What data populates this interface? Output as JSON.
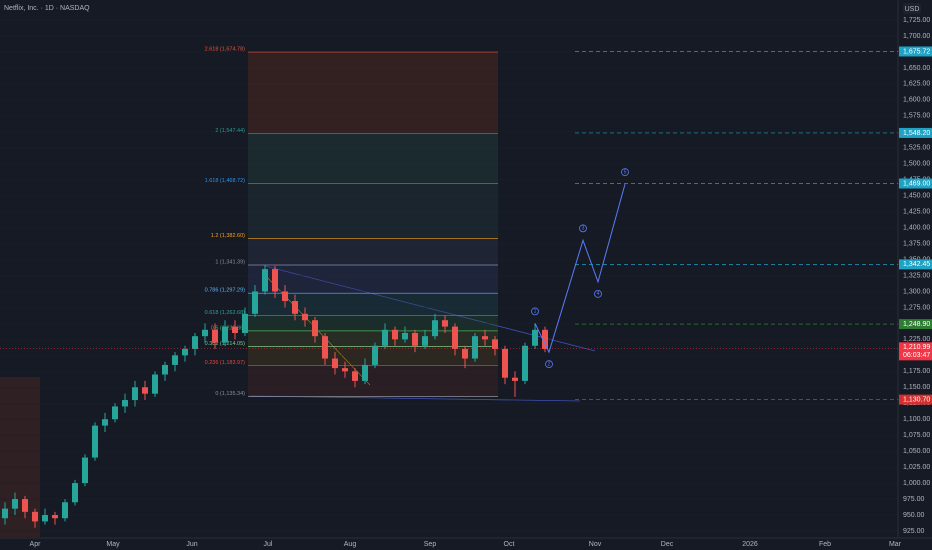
{
  "chart_data": {
    "type": "candlestick",
    "title": "Netflix, Inc. · 1D · NASDAQ",
    "currency": "USD",
    "up_color": "#26a69a",
    "down_color": "#ef5350",
    "ylim": [
      925,
      1725
    ],
    "yticks": [
      {
        "value": 925,
        "label": "925.00"
      },
      {
        "value": 950,
        "label": "950.00"
      },
      {
        "value": 975,
        "label": "975.00"
      },
      {
        "value": 1000,
        "label": "1,000.00"
      },
      {
        "value": 1025,
        "label": "1,025.00"
      },
      {
        "value": 1050,
        "label": "1,050.00"
      },
      {
        "value": 1075,
        "label": "1,075.00"
      },
      {
        "value": 1100,
        "label": "1,100.00"
      },
      {
        "value": 1125,
        "label": "1,125.00"
      },
      {
        "value": 1150,
        "label": "1,150.00"
      },
      {
        "value": 1175,
        "label": "1,175.00"
      },
      {
        "value": 1200,
        "label": "1,200.00"
      },
      {
        "value": 1225,
        "label": "1,225.00"
      },
      {
        "value": 1250,
        "label": "1,250.00"
      },
      {
        "value": 1275,
        "label": "1,275.00"
      },
      {
        "value": 1300,
        "label": "1,300.00"
      },
      {
        "value": 1325,
        "label": "1,325.00"
      },
      {
        "value": 1350,
        "label": "1,350.00"
      },
      {
        "value": 1375,
        "label": "1,375.00"
      },
      {
        "value": 1400,
        "label": "1,400.00"
      },
      {
        "value": 1425,
        "label": "1,425.00"
      },
      {
        "value": 1450,
        "label": "1,450.00"
      },
      {
        "value": 1475,
        "label": "1,475.00"
      },
      {
        "value": 1500,
        "label": "1,500.00"
      },
      {
        "value": 1525,
        "label": "1,525.00"
      },
      {
        "value": 1550,
        "label": "1,550.00"
      },
      {
        "value": 1575,
        "label": "1,575.00"
      },
      {
        "value": 1600,
        "label": "1,600.00"
      },
      {
        "value": 1625,
        "label": "1,625.00"
      },
      {
        "value": 1650,
        "label": "1,650.00"
      },
      {
        "value": 1675,
        "label": "1,675.00"
      },
      {
        "value": 1700,
        "label": "1,700.00"
      },
      {
        "value": 1725,
        "label": "1,725.00"
      }
    ],
    "months": [
      "Apr",
      "May",
      "Jun",
      "Jul",
      "Aug",
      "Sep",
      "Oct",
      "Nov",
      "Dec",
      "2026",
      "Feb",
      "Mar"
    ],
    "candles": [
      [
        945,
        970,
        935,
        960
      ],
      [
        960,
        985,
        950,
        975
      ],
      [
        975,
        980,
        945,
        955
      ],
      [
        955,
        960,
        930,
        940
      ],
      [
        940,
        960,
        935,
        950
      ],
      [
        950,
        955,
        935,
        945
      ],
      [
        945,
        975,
        940,
        970
      ],
      [
        970,
        1005,
        965,
        1000
      ],
      [
        1000,
        1045,
        995,
        1040
      ],
      [
        1040,
        1095,
        1035,
        1090
      ],
      [
        1090,
        1110,
        1080,
        1100
      ],
      [
        1100,
        1125,
        1095,
        1120
      ],
      [
        1120,
        1140,
        1110,
        1130
      ],
      [
        1130,
        1160,
        1120,
        1150
      ],
      [
        1150,
        1160,
        1130,
        1140
      ],
      [
        1140,
        1175,
        1135,
        1170
      ],
      [
        1170,
        1190,
        1160,
        1185
      ],
      [
        1185,
        1205,
        1175,
        1200
      ],
      [
        1200,
        1215,
        1190,
        1210
      ],
      [
        1210,
        1235,
        1200,
        1230
      ],
      [
        1230,
        1250,
        1220,
        1240
      ],
      [
        1240,
        1250,
        1210,
        1220
      ],
      [
        1220,
        1255,
        1215,
        1245
      ],
      [
        1245,
        1255,
        1225,
        1235
      ],
      [
        1235,
        1275,
        1230,
        1265
      ],
      [
        1265,
        1310,
        1260,
        1300
      ],
      [
        1300,
        1342,
        1295,
        1335
      ],
      [
        1335,
        1340,
        1290,
        1300
      ],
      [
        1300,
        1310,
        1275,
        1285
      ],
      [
        1285,
        1295,
        1255,
        1265
      ],
      [
        1265,
        1275,
        1245,
        1255
      ],
      [
        1255,
        1260,
        1220,
        1230
      ],
      [
        1230,
        1235,
        1185,
        1195
      ],
      [
        1195,
        1205,
        1170,
        1180
      ],
      [
        1180,
        1190,
        1165,
        1175
      ],
      [
        1175,
        1180,
        1150,
        1160
      ],
      [
        1160,
        1195,
        1155,
        1185
      ],
      [
        1185,
        1220,
        1180,
        1215
      ],
      [
        1215,
        1250,
        1210,
        1240
      ],
      [
        1240,
        1245,
        1215,
        1225
      ],
      [
        1225,
        1245,
        1220,
        1235
      ],
      [
        1235,
        1240,
        1205,
        1215
      ],
      [
        1215,
        1240,
        1210,
        1230
      ],
      [
        1230,
        1265,
        1225,
        1255
      ],
      [
        1255,
        1262,
        1235,
        1245
      ],
      [
        1245,
        1250,
        1200,
        1210
      ],
      [
        1210,
        1215,
        1180,
        1195
      ],
      [
        1195,
        1235,
        1190,
        1230
      ],
      [
        1230,
        1240,
        1215,
        1225
      ],
      [
        1225,
        1230,
        1200,
        1210
      ],
      [
        1210,
        1215,
        1155,
        1165
      ],
      [
        1165,
        1175,
        1135,
        1160
      ],
      [
        1160,
        1220,
        1155,
        1215
      ],
      [
        1215,
        1250,
        1210,
        1240
      ],
      [
        1240,
        1245,
        1205,
        1210
      ]
    ],
    "fib_levels": [
      {
        "value": 1674.78,
        "label": "2.618 (1,674.78)",
        "color": "#e0573a",
        "fill": "rgba(120,50,30,0.30)"
      },
      {
        "value": 1547.44,
        "label": "2 (1,547.44)",
        "color": "#2a9d8f",
        "fill": "rgba(40,90,80,0.25)"
      },
      {
        "value": 1468.72,
        "label": "1.618 (1,468.72)",
        "color": "#2196f3",
        "fill": "rgba(40,70,70,0.25)"
      },
      {
        "value": 1382.6,
        "label": "1.2 (1,382.60)",
        "color": "#f7a21b",
        "fill": "rgba(50,60,90,0.30)"
      },
      {
        "value": 1341.39,
        "label": "1 (1,341.39)",
        "color": "#8a8f9c",
        "fill": "rgba(50,60,110,0.30)"
      },
      {
        "value": 1297.29,
        "label": "0.786 (1,297.29)",
        "color": "#64b5f6",
        "fill": "rgba(30,80,90,0.30)"
      },
      {
        "value": 1262.68,
        "label": "0.618 (1,262.68)",
        "color": "#26a69a",
        "fill": "rgba(40,90,60,0.30)"
      },
      {
        "value": 1238.36,
        "label": "0.5 (1,238.36)",
        "color": "#4caf50",
        "fill": "rgba(80,90,40,0.30)"
      },
      {
        "value": 1214.05,
        "label": "0.382 (1,214.05)",
        "color": "#81c784",
        "fill": "rgba(100,70,30,0.30)"
      },
      {
        "value": 1183.97,
        "label": "0.236 (1,183.97)",
        "color": "#f44336",
        "fill": "rgba(90,40,40,0.30)"
      },
      {
        "value": 1135.34,
        "label": "0 (1,135.34)",
        "color": "#8a8f9c"
      }
    ],
    "price_tags": [
      {
        "value": 1675.72,
        "label": "1,675.72",
        "color": "#1fa2c4"
      },
      {
        "value": 1548.2,
        "label": "1,548.20",
        "color": "#1fa2c4"
      },
      {
        "value": 1469.0,
        "label": "1,469.00",
        "color": "#1fa2c4"
      },
      {
        "value": 1342.45,
        "label": "1,342.45",
        "color": "#1fa2c4"
      },
      {
        "value": 1248.9,
        "label": "1,248.90",
        "color": "#2e7d32"
      },
      {
        "value": 1130.7,
        "label": "1,130.70",
        "color": "#d32f2f"
      }
    ],
    "last_price": {
      "value": 1210.99,
      "label": "1,210.99",
      "countdown": "06:03:47",
      "color": "#f23645"
    },
    "waves": [
      {
        "label": "1",
        "value": 1250
      },
      {
        "label": "2",
        "value": 1205
      },
      {
        "label": "3",
        "value": 1380
      },
      {
        "label": "4",
        "value": 1315
      },
      {
        "label": "5",
        "value": 1468
      }
    ]
  }
}
